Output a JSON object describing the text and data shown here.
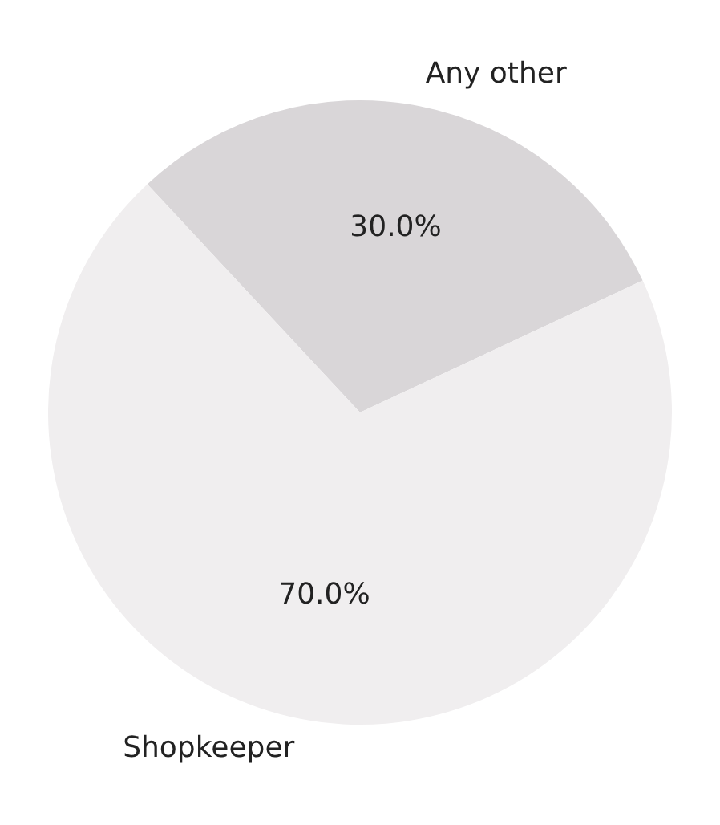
{
  "chart_data": {
    "type": "pie",
    "categories": [
      "Any other",
      "Shopkeeper"
    ],
    "values": [
      30,
      70
    ],
    "colors": [
      "#d9d6d8",
      "#f0eeef"
    ],
    "value_labels": [
      "30.0%",
      "70.0%"
    ]
  }
}
